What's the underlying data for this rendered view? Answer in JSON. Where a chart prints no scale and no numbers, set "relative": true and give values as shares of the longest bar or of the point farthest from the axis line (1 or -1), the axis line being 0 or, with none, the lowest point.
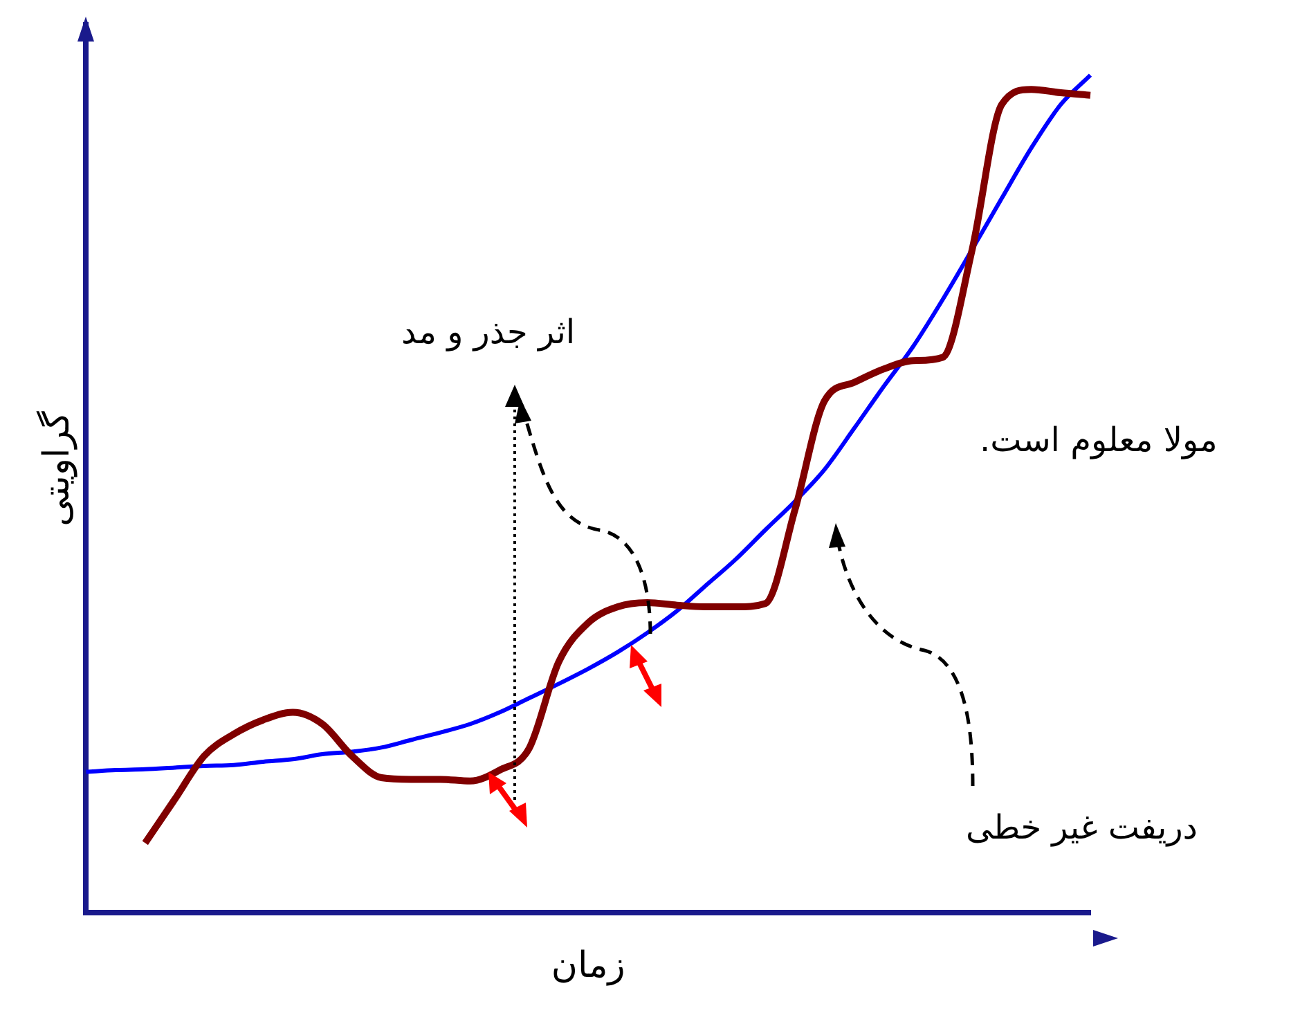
{
  "chart_data": {
    "type": "line",
    "relative": true,
    "xlabel": "زمان",
    "ylabel": "گراویتی",
    "categories": [
      null,
      null,
      null,
      null,
      null,
      null,
      null,
      null,
      null,
      null,
      null,
      null,
      null,
      null,
      null,
      null,
      null,
      null,
      null,
      null,
      null,
      null,
      null,
      null,
      null,
      null,
      null,
      null,
      null,
      null,
      null,
      null,
      null,
      null,
      null
    ],
    "series": [
      {
        "color": "#800000",
        "values": [
          null,
          null,
          0.083,
          0.135,
          0.187,
          0.213,
          0.23,
          0.239,
          0.225,
          0.187,
          0.161,
          0.159,
          0.159,
          0.157,
          0.17,
          0.196,
          0.299,
          0.346,
          0.365,
          0.37,
          0.367,
          0.365,
          0.365,
          0.369,
          0.481,
          0.611,
          0.633,
          0.649,
          0.659,
          0.663,
          0.792,
          0.965,
          0.983,
          0.979,
          0.976
        ]
      },
      {
        "color": "#0000ff",
        "values": [
          0.168,
          0.17,
          0.171,
          0.173,
          0.175,
          0.176,
          0.18,
          0.183,
          0.189,
          0.192,
          0.197,
          0.206,
          0.215,
          0.225,
          0.239,
          0.256,
          0.273,
          0.291,
          0.311,
          0.334,
          0.36,
          0.391,
          0.422,
          0.457,
          0.491,
          0.529,
          0.578,
          0.628,
          0.676,
          0.732,
          0.792,
          0.853,
          0.913,
          0.965,
          1
        ]
      }
    ],
    "annotations": [
      "اثر جذر و مد",
      "مولا معلوم است.",
      "دریفت غیر خطی"
    ],
    "grid": false,
    "legend": false,
    "marker": "none",
    "line_style": "solid"
  }
}
